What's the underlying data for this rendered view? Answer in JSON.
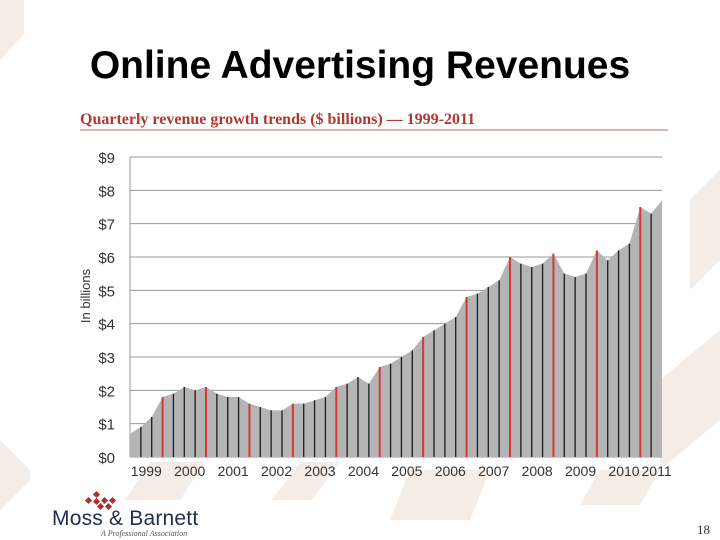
{
  "slide": {
    "title": "Online Advertising Revenues",
    "page_number": "18",
    "logo": {
      "name": "Moss & Barnett",
      "tagline": "A Professional Association"
    }
  },
  "colors": {
    "area_fill": "#b4b4b4",
    "q4_line": "#d7372e",
    "quarter_line": "#1a1a1a",
    "chart_title": "#b5362c",
    "background_chevron": "#f6ece6",
    "logo_red": "#b62b2b"
  },
  "chart_data": {
    "type": "area",
    "title": "Quarterly revenue growth trends ($ billions) — 1999-2011",
    "ylabel": "In billions",
    "xlabel": "",
    "ylim": [
      0,
      9
    ],
    "y_ticks": [
      "$0",
      "$1",
      "$2",
      "$3",
      "$4",
      "$5",
      "$6",
      "$7",
      "$8",
      "$9"
    ],
    "x_ticks": [
      "1999",
      "2000",
      "2001",
      "2002",
      "2003",
      "2004",
      "2005",
      "2006",
      "2007",
      "2008",
      "2009",
      "2010",
      "2011"
    ],
    "grid": true,
    "highlight": "Q4 quarters marked with red lines",
    "quarters": [
      "Q1 1999",
      "Q2 1999",
      "Q3 1999",
      "Q4 1999",
      "Q1 2000",
      "Q2 2000",
      "Q3 2000",
      "Q4 2000",
      "Q1 2001",
      "Q2 2001",
      "Q3 2001",
      "Q4 2001",
      "Q1 2002",
      "Q2 2002",
      "Q3 2002",
      "Q4 2002",
      "Q1 2003",
      "Q2 2003",
      "Q3 2003",
      "Q4 2003",
      "Q1 2004",
      "Q2 2004",
      "Q3 2004",
      "Q4 2004",
      "Q1 2005",
      "Q2 2005",
      "Q3 2005",
      "Q4 2005",
      "Q1 2006",
      "Q2 2006",
      "Q3 2006",
      "Q4 2006",
      "Q1 2007",
      "Q2 2007",
      "Q3 2007",
      "Q4 2007",
      "Q1 2008",
      "Q2 2008",
      "Q3 2008",
      "Q4 2008",
      "Q1 2009",
      "Q2 2009",
      "Q3 2009",
      "Q4 2009",
      "Q1 2010",
      "Q2 2010",
      "Q3 2010",
      "Q4 2010",
      "Q1 2011",
      "Q2 2011"
    ],
    "values": [
      0.7,
      0.9,
      1.2,
      1.8,
      1.9,
      2.1,
      2.0,
      2.1,
      1.9,
      1.8,
      1.8,
      1.6,
      1.5,
      1.4,
      1.4,
      1.6,
      1.6,
      1.7,
      1.8,
      2.1,
      2.2,
      2.4,
      2.2,
      2.7,
      2.8,
      3.0,
      3.2,
      3.6,
      3.8,
      4.0,
      4.2,
      4.8,
      4.9,
      5.1,
      5.3,
      6.0,
      5.8,
      5.7,
      5.8,
      6.1,
      5.5,
      5.4,
      5.5,
      6.2,
      5.9,
      6.2,
      6.4,
      7.5,
      7.3,
      7.7
    ]
  }
}
